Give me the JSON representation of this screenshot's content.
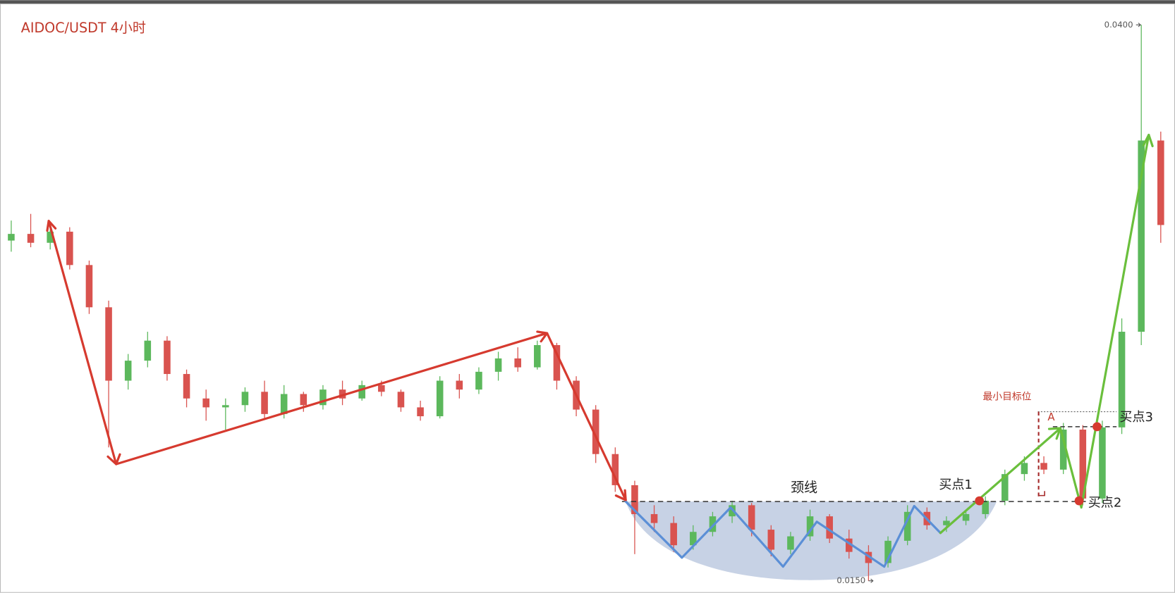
{
  "chart_data": {
    "type": "candlestick",
    "title": "AIDOC/USDT  4小时",
    "ylim": [
      0.01446,
      0.04111
    ],
    "up_color": "#5cb85c",
    "down_color": "#d9534f",
    "open": [
      0.0303,
      0.0306,
      0.0302,
      0.0307,
      0.0292,
      0.0273,
      0.024,
      0.0249,
      0.0258,
      0.0243,
      0.0232,
      0.0228,
      0.0229,
      0.0235,
      0.0225,
      0.0234,
      0.0229,
      0.0236,
      0.0232,
      0.0238,
      0.0235,
      0.0228,
      0.0224,
      0.024,
      0.0236,
      0.0244,
      0.025,
      0.0246,
      0.0256,
      0.024,
      0.0227,
      0.0207,
      0.0193,
      0.018,
      0.0176,
      0.0166,
      0.0172,
      0.0179,
      0.0184,
      0.0173,
      0.0164,
      0.017,
      0.0179,
      0.0169,
      0.0163,
      0.0158,
      0.0168,
      0.0181,
      0.0175,
      0.0177,
      0.018,
      0.0186,
      0.0198,
      0.0203,
      0.02,
      0.0218,
      0.0187,
      0.0219,
      0.0262,
      0.0348
    ],
    "high": [
      0.0312,
      0.0315,
      0.031,
      0.0309,
      0.0294,
      0.0276,
      0.0252,
      0.0262,
      0.026,
      0.0245,
      0.0236,
      0.0232,
      0.0237,
      0.024,
      0.0238,
      0.0235,
      0.0238,
      0.024,
      0.024,
      0.024,
      0.0236,
      0.0231,
      0.0242,
      0.0243,
      0.0246,
      0.0253,
      0.0255,
      0.0258,
      0.0257,
      0.0242,
      0.0229,
      0.021,
      0.0195,
      0.0184,
      0.0179,
      0.0175,
      0.0181,
      0.0186,
      0.0185,
      0.0175,
      0.0172,
      0.0182,
      0.018,
      0.0173,
      0.0166,
      0.017,
      0.0184,
      0.0183,
      0.0179,
      0.0182,
      0.0188,
      0.02,
      0.0206,
      0.0206,
      0.0221,
      0.022,
      0.0222,
      0.0268,
      0.04,
      0.0352
    ],
    "low": [
      0.0298,
      0.03,
      0.0299,
      0.029,
      0.027,
      0.021,
      0.0236,
      0.0246,
      0.024,
      0.0228,
      0.0222,
      0.0218,
      0.0226,
      0.0223,
      0.0223,
      0.0226,
      0.0227,
      0.0229,
      0.0231,
      0.0233,
      0.0226,
      0.0222,
      0.0223,
      0.0232,
      0.0234,
      0.024,
      0.0244,
      0.0245,
      0.0236,
      0.0224,
      0.0203,
      0.019,
      0.0162,
      0.0172,
      0.0163,
      0.0164,
      0.017,
      0.0176,
      0.017,
      0.0161,
      0.0162,
      0.0168,
      0.0167,
      0.016,
      0.015,
      0.0156,
      0.0166,
      0.0173,
      0.0172,
      0.0175,
      0.0178,
      0.0184,
      0.0195,
      0.0198,
      0.0198,
      0.0184,
      0.0185,
      0.0216,
      0.0256,
      0.0302
    ],
    "close": [
      0.0306,
      0.0302,
      0.0307,
      0.0292,
      0.0273,
      0.024,
      0.0249,
      0.0258,
      0.0243,
      0.0232,
      0.0228,
      0.0229,
      0.0235,
      0.0225,
      0.0234,
      0.0229,
      0.0236,
      0.0232,
      0.0238,
      0.0235,
      0.0228,
      0.0224,
      0.024,
      0.0236,
      0.0244,
      0.025,
      0.0246,
      0.0256,
      0.024,
      0.0227,
      0.0207,
      0.0193,
      0.018,
      0.0176,
      0.0166,
      0.0172,
      0.0179,
      0.0184,
      0.0173,
      0.0164,
      0.017,
      0.0179,
      0.0169,
      0.0163,
      0.0158,
      0.0168,
      0.0181,
      0.0175,
      0.0177,
      0.018,
      0.0186,
      0.0198,
      0.0203,
      0.02,
      0.0218,
      0.0187,
      0.0219,
      0.0262,
      0.0348,
      0.031
    ],
    "price_labels": [
      {
        "value": 0.04,
        "label": "0.0400"
      },
      {
        "value": 0.015,
        "label": "0.0150"
      }
    ],
    "annotations": {
      "neckline": "颈线",
      "buy1": "买点1",
      "buy2": "买点2",
      "buy3": "买点3",
      "target": "最小目标位",
      "a": "A"
    }
  }
}
